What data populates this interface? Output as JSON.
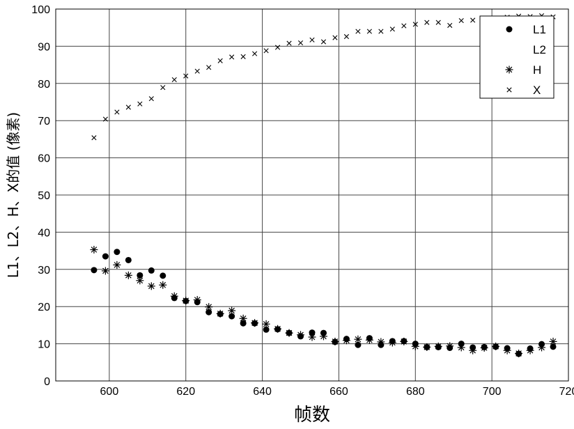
{
  "chart_data": {
    "type": "scatter",
    "xlabel": "帧数",
    "ylabel": "L1、L2、H、X的值 (像素)",
    "xlim": [
      586,
      720
    ],
    "ylim": [
      0,
      100
    ],
    "xticks": [
      "600",
      "620",
      "640",
      "660",
      "680",
      "700",
      "720"
    ],
    "yticks": [
      "0",
      "10",
      "20",
      "30",
      "40",
      "50",
      "60",
      "70",
      "80",
      "90",
      "100"
    ],
    "grid": true,
    "legend_position": "top-right",
    "series": [
      {
        "name": "L1",
        "marker": "filled-circle",
        "x": [
          596,
          599,
          602,
          605,
          608,
          611,
          614,
          617,
          620,
          623,
          626,
          629,
          632,
          635,
          638,
          641,
          644,
          647,
          650,
          653,
          656,
          659,
          662,
          665,
          668,
          671,
          674,
          677,
          680,
          683,
          686,
          689,
          692,
          695,
          698,
          701,
          704,
          707,
          710,
          713,
          716
        ],
        "y": [
          29.8,
          33.5,
          34.7,
          32.5,
          28.4,
          29.7,
          28.3,
          22.3,
          21.5,
          21.2,
          18.5,
          18.0,
          17.4,
          15.5,
          15.5,
          13.8,
          13.9,
          12.9,
          12.0,
          13.0,
          12.9,
          10.5,
          11.3,
          9.7,
          11.5,
          9.7,
          10.7,
          10.7,
          10.0,
          9.1,
          9.1,
          8.9,
          10.0,
          9.0,
          9.1,
          9.2,
          8.8,
          7.3,
          8.7,
          9.9,
          9.2
        ]
      },
      {
        "name": "L2",
        "marker": "none",
        "x": [],
        "y": []
      },
      {
        "name": "H",
        "marker": "asterisk",
        "x": [
          596,
          599,
          602,
          605,
          608,
          611,
          614,
          617,
          620,
          623,
          626,
          629,
          632,
          635,
          638,
          641,
          644,
          647,
          650,
          653,
          656,
          659,
          662,
          665,
          668,
          671,
          674,
          677,
          680,
          683,
          686,
          689,
          692,
          695,
          698,
          701,
          704,
          707,
          710,
          713,
          716
        ],
        "y": [
          35.3,
          29.6,
          31.2,
          28.4,
          27.0,
          25.5,
          25.8,
          22.8,
          21.6,
          21.8,
          19.9,
          18.1,
          18.9,
          16.8,
          15.6,
          15.3,
          14.0,
          12.9,
          12.4,
          11.8,
          12.0,
          10.6,
          10.9,
          11.2,
          11.0,
          10.5,
          10.3,
          10.6,
          9.3,
          9.1,
          9.3,
          9.4,
          9.0,
          8.2,
          8.9,
          9.3,
          8.2,
          7.4,
          8.2,
          9.0,
          10.6
        ]
      },
      {
        "name": "X",
        "marker": "cross",
        "x": [
          596,
          599,
          602,
          605,
          608,
          611,
          614,
          617,
          620,
          623,
          626,
          629,
          632,
          635,
          638,
          641,
          644,
          647,
          650,
          653,
          656,
          659,
          662,
          665,
          668,
          671,
          674,
          677,
          680,
          683,
          686,
          689,
          692,
          695,
          698,
          701,
          704,
          707,
          710,
          713,
          716
        ],
        "y": [
          65.4,
          70.4,
          72.3,
          73.6,
          74.5,
          75.9,
          78.9,
          81.0,
          82.0,
          83.3,
          84.3,
          86.1,
          87.1,
          87.2,
          88.0,
          88.8,
          89.7,
          90.8,
          90.9,
          91.7,
          91.2,
          92.3,
          92.6,
          94.0,
          94.0,
          94.0,
          94.6,
          95.5,
          95.9,
          96.4,
          96.4,
          95.6,
          96.9,
          97.0,
          96.5,
          97.5,
          97.8,
          98.1,
          98.0,
          98.2,
          97.9
        ]
      }
    ]
  }
}
